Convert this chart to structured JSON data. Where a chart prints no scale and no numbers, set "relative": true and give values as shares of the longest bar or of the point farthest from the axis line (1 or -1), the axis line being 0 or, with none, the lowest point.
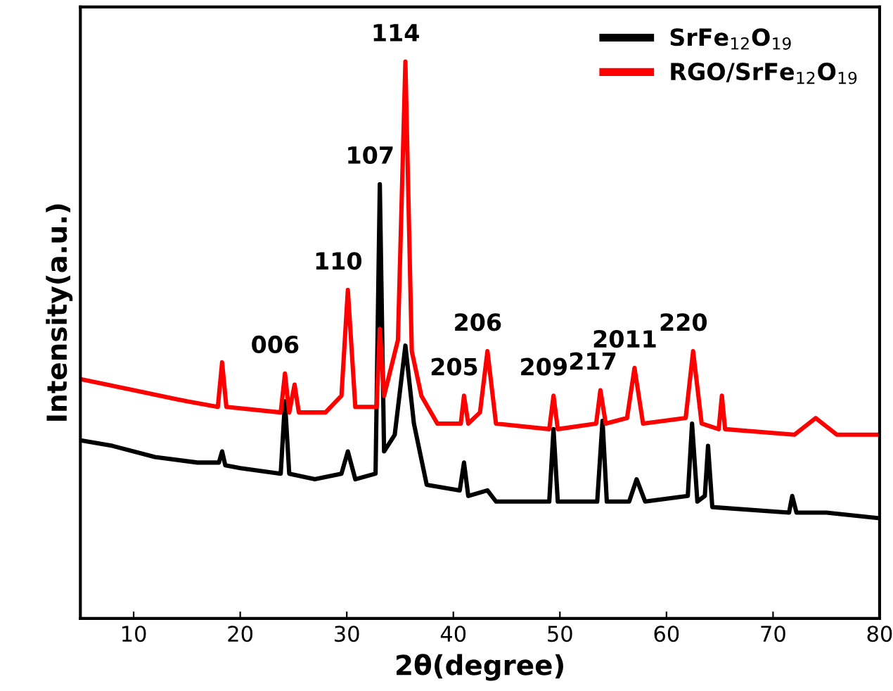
{
  "chart_data": {
    "type": "line",
    "relative": true,
    "xlabel": "2θ(degree)",
    "ylabel": "Intensity(a.u.)",
    "xlim": [
      5,
      80
    ],
    "xticks": [
      10,
      20,
      30,
      40,
      50,
      60,
      70,
      80
    ],
    "tick_labels": "x",
    "legend": "top right",
    "grid": false,
    "series": [
      {
        "name": "SrFe$_{12}$O$_{19}$",
        "color": "#000000",
        "x": [
          5,
          8,
          12,
          16,
          18,
          18.3,
          18.6,
          20,
          23.8,
          24.2,
          24.6,
          27,
          29.5,
          30.1,
          30.8,
          32.7,
          33.1,
          33.5,
          34.5,
          35.5,
          36.3,
          37.5,
          40.6,
          41,
          41.4,
          43.2,
          44,
          49,
          49.4,
          49.8,
          53.5,
          54,
          54.4,
          56.5,
          57.2,
          58,
          62,
          62.4,
          62.9,
          63.6,
          63.9,
          64.3,
          71.5,
          71.8,
          72.2,
          75,
          80
        ],
        "values": [
          0.32,
          0.31,
          0.29,
          0.28,
          0.28,
          0.3,
          0.275,
          0.27,
          0.26,
          0.39,
          0.26,
          0.25,
          0.26,
          0.3,
          0.25,
          0.26,
          0.78,
          0.3,
          0.33,
          0.49,
          0.35,
          0.24,
          0.23,
          0.28,
          0.22,
          0.23,
          0.21,
          0.21,
          0.34,
          0.21,
          0.21,
          0.355,
          0.21,
          0.21,
          0.25,
          0.21,
          0.22,
          0.35,
          0.21,
          0.22,
          0.31,
          0.2,
          0.19,
          0.22,
          0.19,
          0.19,
          0.18
        ]
      },
      {
        "name": "RGO/SrFe$_{12}$O$_{19}$",
        "color": "#ff0000",
        "x": [
          5,
          10,
          15,
          17.9,
          18.3,
          18.7,
          23.8,
          24.2,
          24.6,
          25.1,
          25.5,
          28,
          29.5,
          30.1,
          30.8,
          32.8,
          33.1,
          33.5,
          34.8,
          35.5,
          36.1,
          37,
          38.5,
          40.7,
          41,
          41.4,
          42.5,
          43.2,
          44,
          49,
          49.4,
          49.8,
          53.4,
          53.8,
          54.3,
          56.3,
          57,
          57.8,
          61.8,
          62.5,
          63.3,
          64.9,
          65.2,
          65.5,
          72,
          74,
          76,
          80
        ],
        "values": [
          0.43,
          0.41,
          0.39,
          0.38,
          0.46,
          0.38,
          0.37,
          0.44,
          0.37,
          0.42,
          0.37,
          0.37,
          0.4,
          0.59,
          0.38,
          0.38,
          0.52,
          0.4,
          0.5,
          1.0,
          0.48,
          0.4,
          0.35,
          0.35,
          0.4,
          0.35,
          0.37,
          0.48,
          0.35,
          0.34,
          0.4,
          0.34,
          0.35,
          0.41,
          0.35,
          0.36,
          0.45,
          0.35,
          0.36,
          0.48,
          0.35,
          0.34,
          0.4,
          0.34,
          0.33,
          0.36,
          0.33,
          0.33
        ]
      }
    ],
    "annotations": [
      {
        "text": "006",
        "x": 24.2,
        "y": 0.44
      },
      {
        "text": "110",
        "x": 30.1,
        "y": 0.59
      },
      {
        "text": "107",
        "x": 33.1,
        "y": 0.78
      },
      {
        "text": "114",
        "x": 35.5,
        "y": 1.0
      },
      {
        "text": "205",
        "x": 41,
        "y": 0.4
      },
      {
        "text": "206",
        "x": 43.2,
        "y": 0.48
      },
      {
        "text": "209",
        "x": 49.4,
        "y": 0.4
      },
      {
        "text": "217",
        "x": 54,
        "y": 0.41
      },
      {
        "text": "2011",
        "x": 57,
        "y": 0.45
      },
      {
        "text": "220",
        "x": 62.5,
        "y": 0.48
      }
    ]
  }
}
